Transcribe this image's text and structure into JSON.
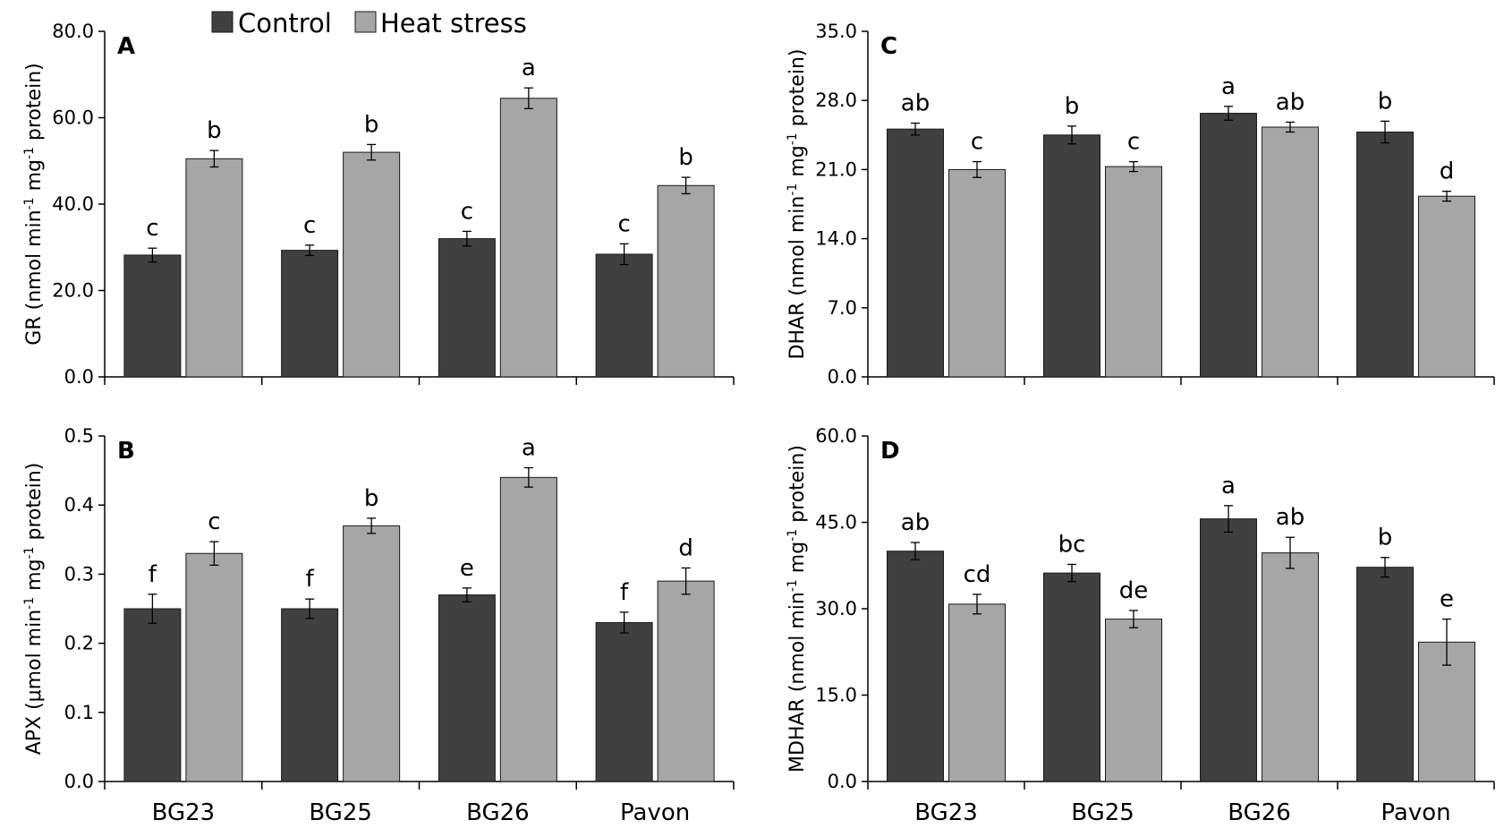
{
  "chart_data": [
    {
      "type": "bar",
      "panel_letter": "A",
      "ylabel_parts": [
        "GR (nmol min",
        "-1",
        " mg",
        "-1",
        " protein)"
      ],
      "ylim": [
        0,
        80
      ],
      "yticks": [
        "0.0",
        "20.0",
        "40.0",
        "60.0",
        "80.0"
      ],
      "categories": [
        "BG23",
        "BG25",
        "BG26",
        "Pavon"
      ],
      "show_categories": false,
      "series": [
        {
          "name": "Control",
          "values": [
            28.2,
            29.3,
            32.0,
            28.4
          ],
          "errors": [
            1.6,
            1.2,
            1.7,
            2.4
          ],
          "letters": [
            "c",
            "c",
            "c",
            "c"
          ]
        },
        {
          "name": "Heat stress",
          "values": [
            50.5,
            52.0,
            64.5,
            44.3
          ],
          "errors": [
            1.9,
            1.8,
            2.4,
            1.9
          ],
          "letters": [
            "b",
            "b",
            "a",
            "b"
          ]
        }
      ]
    },
    {
      "type": "bar",
      "panel_letter": "B",
      "ylabel_parts": [
        "APX (μmol min",
        "-1",
        " mg",
        "-1",
        " protein)"
      ],
      "ylim": [
        0,
        0.5
      ],
      "yticks": [
        "0.0",
        "0.1",
        "0.2",
        "0.3",
        "0.4",
        "0.5"
      ],
      "categories": [
        "BG23",
        "BG25",
        "BG26",
        "Pavon"
      ],
      "show_categories": true,
      "series": [
        {
          "name": "Control",
          "values": [
            0.25,
            0.25,
            0.27,
            0.23
          ],
          "errors": [
            0.021,
            0.014,
            0.01,
            0.015
          ],
          "letters": [
            "f",
            "f",
            "e",
            "f"
          ]
        },
        {
          "name": "Heat stress",
          "values": [
            0.33,
            0.37,
            0.44,
            0.29
          ],
          "errors": [
            0.017,
            0.011,
            0.014,
            0.019
          ],
          "letters": [
            "c",
            "b",
            "a",
            "d"
          ]
        }
      ]
    },
    {
      "type": "bar",
      "panel_letter": "C",
      "ylabel_parts": [
        "DHAR (nmol min",
        "-1",
        " mg",
        "-1",
        " protein)"
      ],
      "ylim": [
        0,
        35
      ],
      "yticks": [
        "0.0",
        "7.0",
        "14.0",
        "21.0",
        "28.0",
        "35.0"
      ],
      "categories": [
        "BG23",
        "BG25",
        "BG26",
        "Pavon"
      ],
      "show_categories": false,
      "series": [
        {
          "name": "Control",
          "values": [
            25.1,
            24.5,
            26.7,
            24.8
          ],
          "errors": [
            0.6,
            0.9,
            0.7,
            1.1
          ],
          "letters": [
            "ab",
            "b",
            "a",
            "b"
          ]
        },
        {
          "name": "Heat stress",
          "values": [
            21.0,
            21.3,
            25.3,
            18.3
          ],
          "errors": [
            0.8,
            0.5,
            0.5,
            0.5
          ],
          "letters": [
            "c",
            "c",
            "ab",
            "d"
          ]
        }
      ]
    },
    {
      "type": "bar",
      "panel_letter": "D",
      "ylabel_parts": [
        "MDHAR (nmol min",
        "-1",
        " mg",
        "-1",
        " protein)"
      ],
      "ylim": [
        0,
        60
      ],
      "yticks": [
        "0.0",
        "15.0",
        "30.0",
        "45.0",
        "60.0"
      ],
      "categories": [
        "BG23",
        "BG25",
        "BG26",
        "Pavon"
      ],
      "show_categories": true,
      "series": [
        {
          "name": "Control",
          "values": [
            40.0,
            36.2,
            45.6,
            37.2
          ],
          "errors": [
            1.5,
            1.5,
            2.3,
            1.7
          ],
          "letters": [
            "ab",
            "bc",
            "a",
            "b"
          ]
        },
        {
          "name": "Heat stress",
          "values": [
            30.8,
            28.2,
            39.7,
            24.2
          ],
          "errors": [
            1.7,
            1.5,
            2.7,
            4.0
          ],
          "letters": [
            "cd",
            "de",
            "ab",
            "e"
          ]
        }
      ]
    }
  ],
  "legend": {
    "items": [
      {
        "label": "Control",
        "color": "#404040"
      },
      {
        "label": "Heat stress",
        "color": "#a6a6a6"
      }
    ]
  },
  "colors": {
    "control": "#404040",
    "heat": "#a6a6a6",
    "bar_edge": "#1a1a1a"
  }
}
